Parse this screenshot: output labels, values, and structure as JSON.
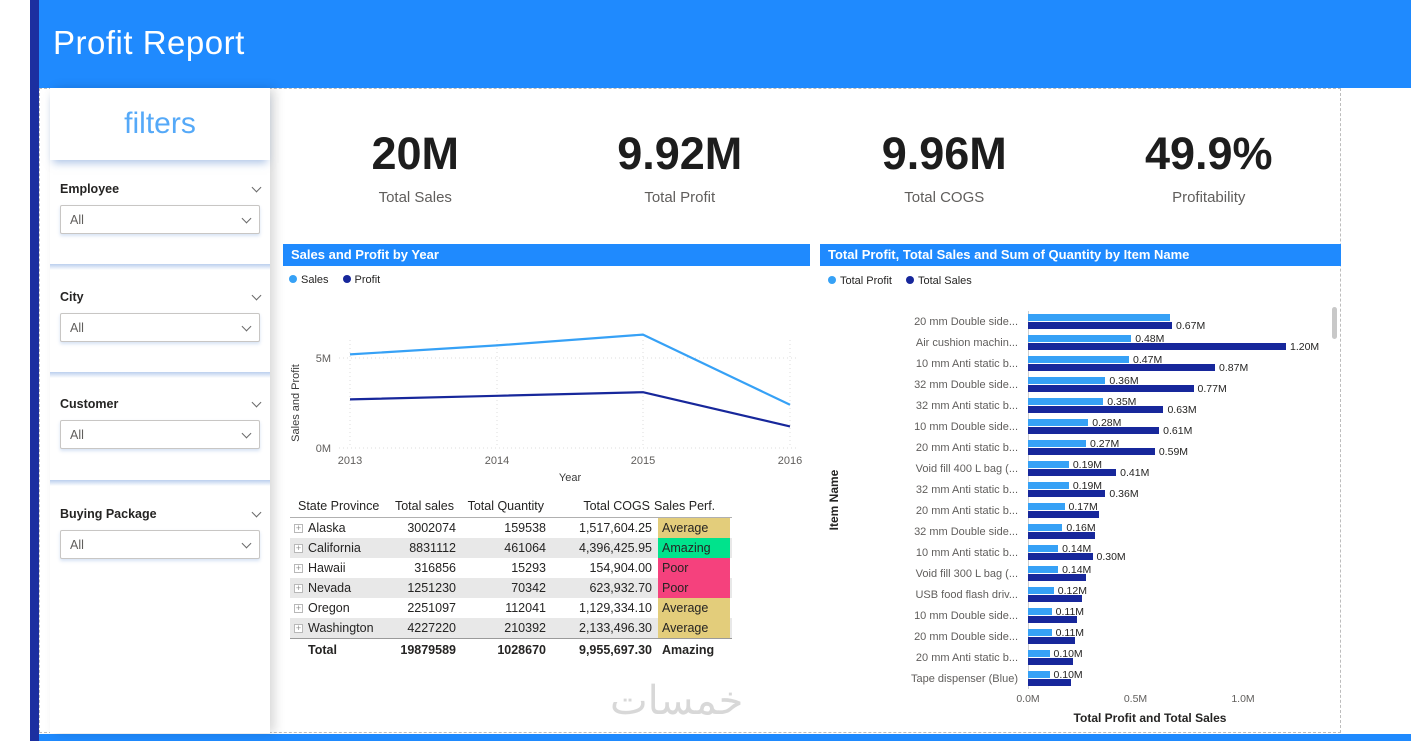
{
  "colors": {
    "accent_blue": "#1f8afe",
    "navy_stripe": "#1c2fa0",
    "filters_blue": "#55a9f8",
    "series_light": "#36a1f6",
    "series_dark": "#17279b",
    "perf_average": "#e3cd7b",
    "perf_amazing": "#00e38c",
    "perf_poor": "#f5417d"
  },
  "header": {
    "title": "Profit Report"
  },
  "filters": {
    "title": "filters",
    "groups": [
      {
        "label": "Employee",
        "value": "All"
      },
      {
        "label": "City",
        "value": "All"
      },
      {
        "label": "Customer",
        "value": "All"
      },
      {
        "label": "Buying Package",
        "value": "All"
      }
    ]
  },
  "kpis": [
    {
      "value": "20M",
      "label": "Total Sales"
    },
    {
      "value": "9.92M",
      "label": "Total Profit"
    },
    {
      "value": "9.96M",
      "label": "Total COGS"
    },
    {
      "value": "49.9%",
      "label": "Profitability"
    }
  ],
  "line_chart": {
    "type": "line",
    "title": "Sales and Profit by Year",
    "xlabel": "Year",
    "ylabel": "Sales and Profit",
    "x": [
      "2013",
      "2014",
      "2015",
      "2016"
    ],
    "yticks": [
      {
        "label": "0M",
        "value": 0
      },
      {
        "label": "5M",
        "value": 5
      }
    ],
    "ylim": [
      0,
      7
    ],
    "y_unit": "M",
    "legend_position": "top-left",
    "series": [
      {
        "name": "Sales",
        "color_key": "series_light",
        "values": [
          5.2,
          5.7,
          6.3,
          2.4
        ]
      },
      {
        "name": "Profit",
        "color_key": "series_dark",
        "values": [
          2.7,
          2.9,
          3.1,
          1.2
        ]
      }
    ]
  },
  "table": {
    "type": "table",
    "columns": [
      "State Province",
      "Total sales",
      "Total Quantity",
      "Total COGS",
      "Sales Perf."
    ],
    "rows": [
      {
        "state": "Alaska",
        "sales": "3002074",
        "quantity": "159538",
        "cogs": "1,517,604.25",
        "perf": "Average"
      },
      {
        "state": "California",
        "sales": "8831112",
        "quantity": "461064",
        "cogs": "4,396,425.95",
        "perf": "Amazing"
      },
      {
        "state": "Hawaii",
        "sales": "316856",
        "quantity": "15293",
        "cogs": "154,904.00",
        "perf": "Poor"
      },
      {
        "state": "Nevada",
        "sales": "1251230",
        "quantity": "70342",
        "cogs": "623,932.70",
        "perf": "Poor"
      },
      {
        "state": "Oregon",
        "sales": "2251097",
        "quantity": "112041",
        "cogs": "1,129,334.10",
        "perf": "Average"
      },
      {
        "state": "Washington",
        "sales": "4227220",
        "quantity": "210392",
        "cogs": "2,133,496.30",
        "perf": "Average"
      }
    ],
    "total": {
      "state": "Total",
      "sales": "19879589",
      "quantity": "1028670",
      "cogs": "9,955,697.30",
      "perf": "Amazing"
    }
  },
  "bar_chart": {
    "type": "bar",
    "title": "Total Profit, Total Sales and Sum of Quantity by Item Name",
    "xlabel": "Total Profit and Total Sales",
    "ylabel": "Item Name",
    "xticks": [
      {
        "label": "0.0M",
        "value": 0
      },
      {
        "label": "0.5M",
        "value": 0.5
      },
      {
        "label": "1.0M",
        "value": 1.0
      }
    ],
    "xlim": [
      0,
      1.4
    ],
    "legend": [
      {
        "name": "Total Profit",
        "color_key": "series_light"
      },
      {
        "name": "Total Sales",
        "color_key": "series_dark"
      }
    ],
    "items": [
      {
        "name": "20 mm Double side...",
        "profit": 0.66,
        "profit_label": "",
        "sales": 0.67,
        "sales_label": "0.67M"
      },
      {
        "name": "Air cushion machin...",
        "profit": 0.48,
        "profit_label": "0.48M",
        "sales": 1.2,
        "sales_label": "1.20M"
      },
      {
        "name": "10 mm Anti static b...",
        "profit": 0.47,
        "profit_label": "0.47M",
        "sales": 0.87,
        "sales_label": "0.87M"
      },
      {
        "name": "32 mm Double side...",
        "profit": 0.36,
        "profit_label": "0.36M",
        "sales": 0.77,
        "sales_label": "0.77M"
      },
      {
        "name": "32 mm Anti static b...",
        "profit": 0.35,
        "profit_label": "0.35M",
        "sales": 0.63,
        "sales_label": "0.63M"
      },
      {
        "name": "10 mm Double side...",
        "profit": 0.28,
        "profit_label": "0.28M",
        "sales": 0.61,
        "sales_label": "0.61M"
      },
      {
        "name": "20 mm Anti static b...",
        "profit": 0.27,
        "profit_label": "0.27M",
        "sales": 0.59,
        "sales_label": "0.59M"
      },
      {
        "name": "Void fill 400 L bag (...",
        "profit": 0.19,
        "profit_label": "0.19M",
        "sales": 0.41,
        "sales_label": "0.41M"
      },
      {
        "name": "32 mm Anti static b...",
        "profit": 0.19,
        "profit_label": "0.19M",
        "sales": 0.36,
        "sales_label": "0.36M"
      },
      {
        "name": "20 mm Anti static b...",
        "profit": 0.17,
        "profit_label": "0.17M",
        "sales": 0.33,
        "sales_label": ""
      },
      {
        "name": "32 mm Double side...",
        "profit": 0.16,
        "profit_label": "0.16M",
        "sales": 0.31,
        "sales_label": ""
      },
      {
        "name": "10 mm Anti static b...",
        "profit": 0.14,
        "profit_label": "0.14M",
        "sales": 0.3,
        "sales_label": "0.30M"
      },
      {
        "name": "Void fill 300 L bag (...",
        "profit": 0.14,
        "profit_label": "0.14M",
        "sales": 0.27,
        "sales_label": ""
      },
      {
        "name": "USB food flash driv...",
        "profit": 0.12,
        "profit_label": "0.12M",
        "sales": 0.25,
        "sales_label": ""
      },
      {
        "name": "10 mm Double side...",
        "profit": 0.11,
        "profit_label": "0.11M",
        "sales": 0.23,
        "sales_label": ""
      },
      {
        "name": "20 mm Double side...",
        "profit": 0.11,
        "profit_label": "0.11M",
        "sales": 0.22,
        "sales_label": ""
      },
      {
        "name": "20 mm Anti static b...",
        "profit": 0.1,
        "profit_label": "0.10M",
        "sales": 0.21,
        "sales_label": ""
      },
      {
        "name": "Tape dispenser (Blue)",
        "profit": 0.1,
        "profit_label": "0.10M",
        "sales": 0.2,
        "sales_label": ""
      }
    ]
  },
  "watermark": "خمسات"
}
